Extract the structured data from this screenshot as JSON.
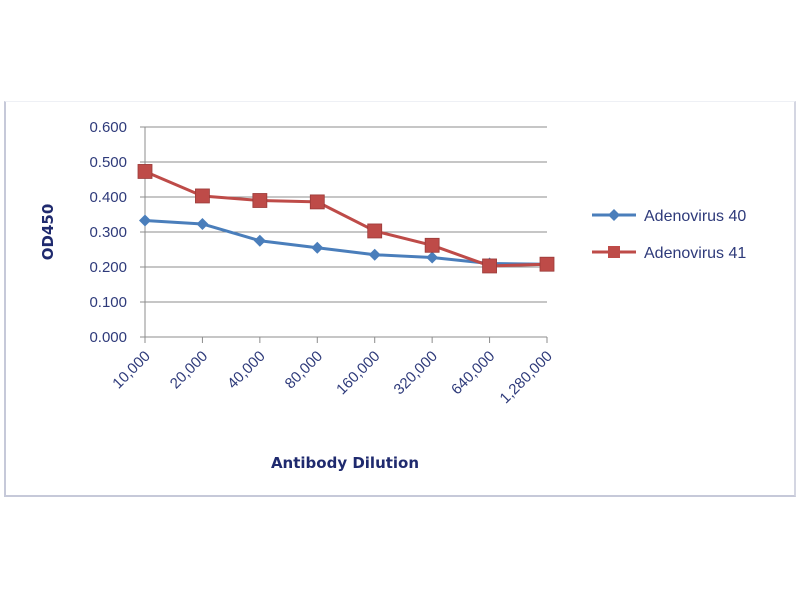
{
  "chart_data": {
    "type": "line",
    "title": "",
    "xlabel": "Antibody Dilution",
    "ylabel": "OD450",
    "categories": [
      "10,000",
      "20,000",
      "40,000",
      "80,000",
      "160,000",
      "320,000",
      "640,000",
      "1,280,000"
    ],
    "y_ticks": [
      "0.000",
      "0.100",
      "0.200",
      "0.300",
      "0.400",
      "0.500",
      "0.600"
    ],
    "ylim": [
      0,
      0.6
    ],
    "grid": true,
    "legend_position": "right",
    "series": [
      {
        "name": "Adenovirus 40",
        "color": "#4a7ebb",
        "marker": "diamond",
        "values": [
          0.333,
          0.323,
          0.275,
          0.255,
          0.235,
          0.227,
          0.21,
          0.208
        ]
      },
      {
        "name": "Adenovirus 41",
        "color": "#be4b48",
        "marker": "square",
        "values": [
          0.473,
          0.403,
          0.39,
          0.386,
          0.303,
          0.262,
          0.203,
          0.208
        ]
      }
    ]
  }
}
